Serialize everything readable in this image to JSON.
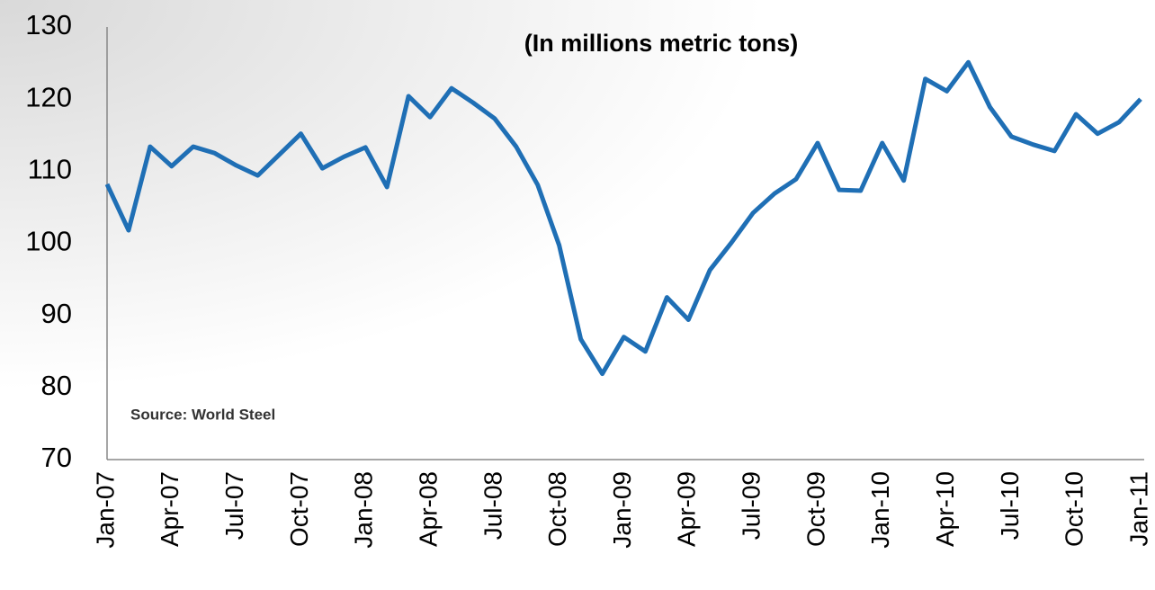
{
  "chart_data": {
    "type": "line",
    "title": "(In millions metric tons)",
    "annotation": "Source: World Steel",
    "categories": [
      "Jan-07",
      null,
      null,
      "Apr-07",
      null,
      null,
      "Jul-07",
      null,
      null,
      "Oct-07",
      null,
      null,
      "Jan-08",
      null,
      null,
      "Apr-08",
      null,
      null,
      "Jul-08",
      null,
      null,
      "Oct-08",
      null,
      null,
      "Jan-09",
      null,
      null,
      "Apr-09",
      null,
      null,
      "Jul-09",
      null,
      null,
      "Oct-09",
      null,
      null,
      "Jan-10",
      null,
      null,
      "Apr-10",
      null,
      null,
      "Jul-10",
      null,
      null,
      "Oct-10",
      null,
      null,
      "Jan-11"
    ],
    "values": [
      108.2,
      101.8,
      113.4,
      110.7,
      113.4,
      112.5,
      110.8,
      109.4,
      112.3,
      115.2,
      110.4,
      112.0,
      113.3,
      107.8,
      120.4,
      117.5,
      121.5,
      119.5,
      117.3,
      113.4,
      108.1,
      99.7,
      86.7,
      81.9,
      87.0,
      85.0,
      92.5,
      89.4,
      96.3,
      100.1,
      104.2,
      106.9,
      108.9,
      113.9,
      107.4,
      107.3,
      113.9,
      108.7,
      122.8,
      121.1,
      125.1,
      118.9,
      114.8,
      113.7,
      112.8,
      117.9,
      115.2,
      116.8,
      120.0
    ],
    "color": "#1f6fb5",
    "ylim": [
      70,
      130
    ],
    "yticks": [
      70,
      80,
      90,
      100,
      110,
      120,
      130
    ],
    "grid": false
  }
}
